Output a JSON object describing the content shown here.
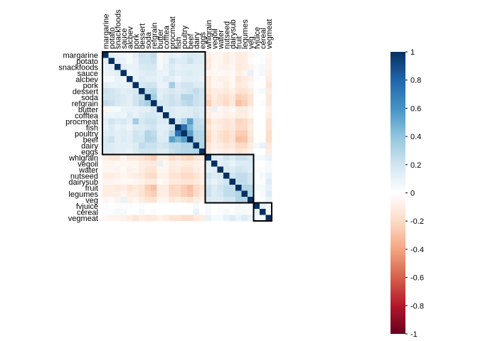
{
  "chart_data": {
    "type": "heatmap",
    "variables": [
      "margarine",
      "potato",
      "snackfoods",
      "sauce",
      "alcbev",
      "pork",
      "dessert",
      "soda",
      "refgrain",
      "butter",
      "cofftea",
      "procmeat",
      "fish",
      "poultry",
      "beef",
      "dairy",
      "eggs",
      "whlgrain",
      "vegoil",
      "water",
      "nutseed",
      "dairysub",
      "fruit",
      "legumes",
      "veg",
      "fvjuice",
      "cereal",
      "vegmeat"
    ],
    "clusters": [
      {
        "start": "margarine",
        "end": "eggs"
      },
      {
        "start": "whlgrain",
        "end": "veg"
      },
      {
        "start": "fvjuice",
        "end": "vegmeat"
      }
    ],
    "colorbar": {
      "min": -1,
      "max": 1,
      "ticks": [
        "1",
        "0.8",
        "0.6",
        "0.4",
        "0.2",
        "0",
        "-0.2",
        "-0.4",
        "-0.6",
        "-0.8",
        "-1"
      ]
    },
    "matrix": [
      [
        1,
        0.12,
        0.1,
        0.08,
        0.05,
        0.12,
        0.22,
        0.2,
        0.25,
        -0.05,
        0.08,
        0.12,
        0.1,
        0.14,
        0.18,
        0.16,
        0.15,
        -0.1,
        -0.05,
        -0.05,
        -0.1,
        -0.06,
        -0.1,
        -0.1,
        -0.05,
        0.02,
        0.02,
        -0.05
      ],
      [
        0.12,
        1,
        0.12,
        0.1,
        0.05,
        0.1,
        0.2,
        0.2,
        0.22,
        0.05,
        0.08,
        0.2,
        0.15,
        0.15,
        0.22,
        0.15,
        0.15,
        -0.12,
        -0.05,
        -0.05,
        -0.1,
        -0.06,
        -0.1,
        -0.1,
        -0.02,
        0,
        0.02,
        -0.06
      ],
      [
        0.1,
        0.12,
        1,
        0.12,
        0.1,
        0.1,
        0.16,
        0.18,
        0.18,
        0.05,
        0.1,
        0.15,
        0.1,
        0.12,
        0.12,
        0.12,
        0.12,
        -0.12,
        -0.04,
        -0.06,
        -0.08,
        -0.05,
        -0.12,
        -0.1,
        -0.06,
        0.02,
        0.05,
        -0.06
      ],
      [
        0.08,
        0.1,
        0.12,
        1,
        0.08,
        0.1,
        0.12,
        0.15,
        0.15,
        0.1,
        0.08,
        0.18,
        0.12,
        0.14,
        0.15,
        0.12,
        0.12,
        -0.05,
        -0.05,
        -0.04,
        -0.05,
        -0.04,
        -0.1,
        -0.05,
        0.1,
        -0.02,
        0.05,
        -0.08
      ],
      [
        0.05,
        0.05,
        0.1,
        0.08,
        1,
        0.1,
        0.15,
        0.12,
        0.12,
        0.1,
        0.15,
        0.12,
        0.08,
        0.12,
        0.12,
        0.12,
        0.1,
        -0.12,
        -0.05,
        -0.08,
        -0.08,
        -0.04,
        -0.15,
        -0.1,
        -0.08,
        0.02,
        0,
        -0.1
      ],
      [
        0.12,
        0.1,
        0.1,
        0.1,
        0.1,
        1,
        0.18,
        0.2,
        0.2,
        0.1,
        0.1,
        0.35,
        0.15,
        0.2,
        0.2,
        0.15,
        0.15,
        -0.12,
        -0.05,
        -0.05,
        -0.1,
        -0.05,
        -0.12,
        -0.1,
        -0.05,
        0,
        0,
        -0.15
      ],
      [
        0.22,
        0.2,
        0.16,
        0.12,
        0.15,
        0.18,
        1,
        0.25,
        0.28,
        0.12,
        0.15,
        0.18,
        0.15,
        0.18,
        0.2,
        0.25,
        0.2,
        -0.15,
        -0.1,
        -0.1,
        -0.12,
        -0.08,
        -0.15,
        -0.15,
        -0.1,
        0.02,
        0.05,
        -0.1
      ],
      [
        0.2,
        0.2,
        0.18,
        0.15,
        0.12,
        0.2,
        0.25,
        1,
        0.35,
        0.12,
        0.18,
        0.22,
        0.18,
        0.3,
        0.3,
        0.22,
        0.2,
        -0.2,
        -0.1,
        -0.15,
        -0.18,
        -0.12,
        -0.25,
        -0.22,
        -0.15,
        0,
        0,
        -0.12
      ],
      [
        0.25,
        0.22,
        0.18,
        0.15,
        0.12,
        0.2,
        0.28,
        0.35,
        1,
        0.18,
        0.18,
        0.22,
        0.2,
        0.25,
        0.28,
        0.22,
        0.2,
        -0.25,
        -0.12,
        -0.15,
        -0.2,
        -0.12,
        -0.3,
        -0.25,
        -0.15,
        0,
        0.02,
        -0.12
      ],
      [
        -0.05,
        0.05,
        0.05,
        0.1,
        0.1,
        0.1,
        0.12,
        0.12,
        0.18,
        1,
        0.15,
        0.15,
        0.12,
        0.12,
        0.15,
        0.18,
        0.15,
        -0.1,
        0.1,
        -0.05,
        -0.08,
        -0.04,
        -0.1,
        -0.1,
        -0.05,
        0,
        0,
        -0.08
      ],
      [
        0.08,
        0.08,
        0.1,
        0.08,
        0.15,
        0.1,
        0.15,
        0.18,
        0.18,
        0.15,
        1,
        0.15,
        0.12,
        0.15,
        0.15,
        0.2,
        0.15,
        -0.1,
        -0.05,
        -0.05,
        -0.08,
        -0.06,
        -0.1,
        -0.1,
        -0.05,
        0,
        0,
        -0.1
      ],
      [
        0.12,
        0.2,
        0.15,
        0.18,
        0.12,
        0.35,
        0.18,
        0.22,
        0.22,
        0.15,
        0.15,
        1,
        0.2,
        0.3,
        0.55,
        0.25,
        0.22,
        -0.2,
        -0.1,
        -0.12,
        -0.15,
        -0.12,
        -0.22,
        -0.2,
        -0.12,
        0,
        0,
        -0.15
      ],
      [
        0.1,
        0.15,
        0.1,
        0.12,
        0.08,
        0.15,
        0.15,
        0.18,
        0.2,
        0.12,
        0.12,
        0.2,
        1,
        0.75,
        0.45,
        0.25,
        0.25,
        -0.15,
        -0.08,
        -0.1,
        -0.15,
        -0.12,
        -0.2,
        -0.2,
        -0.1,
        0,
        0,
        -0.15
      ],
      [
        0.14,
        0.15,
        0.12,
        0.14,
        0.12,
        0.2,
        0.18,
        0.3,
        0.25,
        0.12,
        0.15,
        0.3,
        0.75,
        1,
        0.55,
        0.3,
        0.28,
        -0.2,
        -0.1,
        -0.15,
        -0.2,
        -0.15,
        -0.25,
        -0.25,
        -0.12,
        0,
        0,
        -0.18
      ],
      [
        0.18,
        0.22,
        0.12,
        0.15,
        0.12,
        0.2,
        0.2,
        0.3,
        0.28,
        0.15,
        0.15,
        0.55,
        0.45,
        0.55,
        1,
        0.3,
        0.28,
        -0.22,
        -0.1,
        -0.15,
        -0.2,
        -0.15,
        -0.3,
        -0.28,
        -0.15,
        0,
        0,
        -0.18
      ],
      [
        0.16,
        0.15,
        0.12,
        0.12,
        0.12,
        0.15,
        0.25,
        0.22,
        0.22,
        0.18,
        0.2,
        0.25,
        0.25,
        0.3,
        0.3,
        1,
        0.3,
        -0.15,
        -0.08,
        -0.1,
        -0.15,
        -0.12,
        -0.2,
        -0.2,
        -0.1,
        0.05,
        0.1,
        -0.12
      ],
      [
        0.15,
        0.15,
        0.12,
        0.12,
        0.1,
        0.15,
        0.2,
        0.2,
        0.2,
        0.15,
        0.15,
        0.22,
        0.25,
        0.28,
        0.28,
        0.3,
        1,
        -0.12,
        -0.05,
        -0.08,
        -0.1,
        -0.08,
        -0.15,
        -0.12,
        -0.08,
        0,
        0,
        -0.1
      ],
      [
        -0.1,
        -0.12,
        -0.12,
        -0.05,
        -0.12,
        -0.12,
        -0.15,
        -0.2,
        -0.25,
        -0.1,
        -0.1,
        -0.2,
        -0.15,
        -0.2,
        -0.22,
        -0.15,
        -0.12,
        1,
        0.15,
        0.12,
        0.2,
        0.15,
        0.22,
        0.22,
        0.18,
        0.05,
        0.05,
        0.1
      ],
      [
        -0.05,
        -0.05,
        -0.04,
        -0.05,
        -0.05,
        -0.05,
        -0.1,
        -0.1,
        -0.12,
        0.1,
        -0.05,
        -0.1,
        -0.08,
        -0.1,
        -0.1,
        -0.08,
        -0.05,
        0.15,
        1,
        0.12,
        0.15,
        0.1,
        0.15,
        0.15,
        0.15,
        0,
        0,
        0.05
      ],
      [
        -0.05,
        -0.05,
        -0.06,
        -0.04,
        -0.08,
        -0.05,
        -0.1,
        -0.15,
        -0.15,
        -0.05,
        -0.05,
        -0.12,
        -0.1,
        -0.15,
        -0.15,
        -0.1,
        -0.08,
        0.12,
        0.12,
        1,
        0.18,
        0.15,
        0.2,
        0.18,
        0.15,
        0.02,
        0.02,
        0.05
      ],
      [
        -0.1,
        -0.1,
        -0.08,
        -0.05,
        -0.08,
        -0.1,
        -0.12,
        -0.18,
        -0.2,
        -0.08,
        -0.08,
        -0.15,
        -0.15,
        -0.2,
        -0.2,
        -0.15,
        -0.1,
        0.2,
        0.15,
        0.18,
        1,
        0.2,
        0.25,
        0.25,
        0.2,
        0,
        0.05,
        0.1
      ],
      [
        -0.06,
        -0.06,
        -0.05,
        -0.04,
        -0.04,
        -0.05,
        -0.08,
        -0.12,
        -0.12,
        -0.04,
        -0.06,
        -0.12,
        -0.12,
        -0.15,
        -0.15,
        -0.12,
        -0.08,
        0.15,
        0.1,
        0.15,
        0.2,
        1,
        0.25,
        0.25,
        0.2,
        0.02,
        0.02,
        0.15
      ],
      [
        -0.1,
        -0.1,
        -0.12,
        -0.1,
        -0.15,
        -0.12,
        -0.15,
        -0.25,
        -0.3,
        -0.1,
        -0.1,
        -0.22,
        -0.2,
        -0.25,
        -0.3,
        -0.2,
        -0.15,
        0.22,
        0.15,
        0.2,
        0.25,
        0.25,
        1,
        0.3,
        0.3,
        0.05,
        0.05,
        0.1
      ],
      [
        -0.1,
        -0.1,
        -0.1,
        -0.05,
        -0.1,
        -0.1,
        -0.15,
        -0.22,
        -0.25,
        -0.1,
        -0.1,
        -0.2,
        -0.2,
        -0.25,
        -0.28,
        -0.2,
        -0.12,
        0.22,
        0.15,
        0.18,
        0.25,
        0.25,
        0.3,
        1,
        0.3,
        0,
        0.05,
        0.15
      ],
      [
        -0.05,
        -0.02,
        -0.06,
        0.1,
        -0.08,
        -0.05,
        -0.1,
        -0.15,
        -0.15,
        -0.05,
        -0.05,
        -0.12,
        -0.1,
        -0.12,
        -0.15,
        -0.1,
        -0.08,
        0.18,
        0.15,
        0.15,
        0.2,
        0.2,
        0.3,
        0.3,
        1,
        0,
        0.02,
        0.1
      ],
      [
        0.02,
        0,
        0.02,
        -0.02,
        0.02,
        0,
        0.02,
        0,
        0,
        0,
        0,
        0,
        0,
        0,
        0,
        0.05,
        0,
        0.05,
        0,
        0.02,
        0,
        0.02,
        0.05,
        0,
        0,
        1,
        0.1,
        0.05
      ],
      [
        0.02,
        0.02,
        0.05,
        0.05,
        0,
        0,
        0.05,
        0,
        0.02,
        0,
        0,
        0,
        0,
        0,
        0,
        0.1,
        0,
        0.05,
        0,
        0.02,
        0.05,
        0.02,
        0.05,
        0.05,
        0.02,
        0.1,
        1,
        0.05
      ],
      [
        -0.05,
        -0.06,
        -0.06,
        -0.08,
        -0.1,
        -0.15,
        -0.1,
        -0.12,
        -0.12,
        -0.08,
        -0.1,
        -0.15,
        -0.15,
        -0.18,
        -0.18,
        -0.12,
        -0.1,
        0.1,
        0.05,
        0.05,
        0.1,
        0.15,
        0.1,
        0.15,
        0.1,
        0.05,
        0.05,
        1
      ]
    ]
  }
}
